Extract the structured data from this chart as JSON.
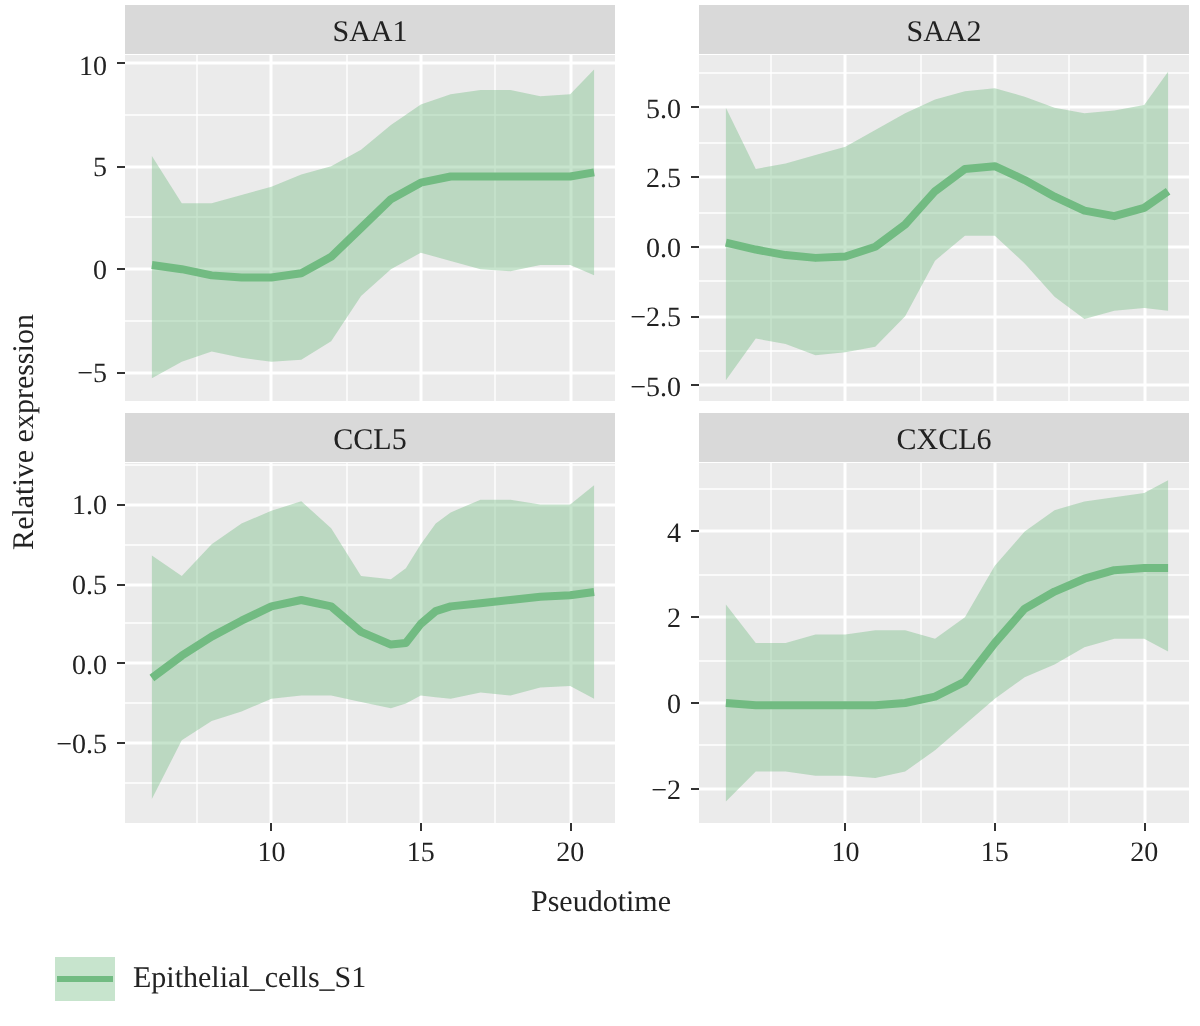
{
  "chart_data": [
    {
      "type": "line",
      "title": "SAA1",
      "ylabel": "Relative expression",
      "legend": "bottom",
      "grid": true,
      "tick_labels": "y",
      "xlim": [
        5.1,
        21.5
      ],
      "xticks": [
        10,
        15,
        20
      ],
      "ylim": [
        -6.4,
        10.4
      ],
      "yticks": [
        -5,
        0,
        5,
        10
      ],
      "series": [
        {
          "name": "Epithelial_cells_S1",
          "color": "#72bb82",
          "x": [
            6,
            7,
            8,
            9,
            10,
            11,
            12,
            13,
            14,
            15,
            16,
            17,
            18,
            19,
            20,
            20.8
          ],
          "values": [
            0.2,
            0,
            -0.3,
            -0.4,
            -0.4,
            -0.2,
            0.6,
            2,
            3.4,
            4.2,
            4.5,
            4.5,
            4.5,
            4.5,
            4.5,
            4.7
          ],
          "upper": [
            5.5,
            3.2,
            3.2,
            3.6,
            4,
            4.6,
            5,
            5.8,
            7,
            8,
            8.5,
            8.7,
            8.7,
            8.4,
            8.5,
            9.7
          ],
          "lower": [
            -5.3,
            -4.5,
            -4,
            -4.3,
            -4.5,
            -4.4,
            -3.5,
            -1.3,
            0,
            0.8,
            0.4,
            0,
            -0.1,
            0.2,
            0.2,
            -0.3
          ]
        }
      ]
    },
    {
      "type": "line",
      "title": "SAA2",
      "grid": true,
      "tick_labels": "y",
      "xlim": [
        5.1,
        21.5
      ],
      "xticks": [
        10,
        15,
        20
      ],
      "ylim": [
        -5.55,
        6.9
      ],
      "yticks": [
        {
          "value": -5,
          "label": "−5.0"
        },
        {
          "value": -2.5,
          "label": "−2.5"
        },
        {
          "value": 0,
          "label": "0.0"
        },
        {
          "value": 2.5,
          "label": "2.5"
        },
        {
          "value": 5,
          "label": "5.0"
        }
      ],
      "series": [
        {
          "color": "#72bb82",
          "x": [
            6,
            7,
            8,
            9,
            10,
            11,
            12,
            13,
            14,
            15,
            16,
            17,
            18,
            19,
            20,
            20.8
          ],
          "values": [
            0.15,
            -0.1,
            -0.3,
            -0.4,
            -0.35,
            0,
            0.8,
            2,
            2.8,
            2.9,
            2.4,
            1.8,
            1.3,
            1.1,
            1.4,
            2
          ],
          "upper": [
            5,
            2.8,
            3,
            3.3,
            3.6,
            4.2,
            4.8,
            5.3,
            5.6,
            5.7,
            5.4,
            5,
            4.8,
            4.9,
            5.1,
            6.3
          ],
          "lower": [
            -4.8,
            -3.3,
            -3.5,
            -3.9,
            -3.8,
            -3.6,
            -2.5,
            -0.5,
            0.4,
            0.4,
            -0.6,
            -1.8,
            -2.6,
            -2.3,
            -2.2,
            -2.3
          ]
        }
      ]
    },
    {
      "type": "line",
      "title": "CCL5",
      "xlabel": "Pseudotime",
      "grid": true,
      "xlim": [
        5.1,
        21.5
      ],
      "xticks": [
        10,
        15,
        20
      ],
      "ylim": [
        -1.0,
        1.26
      ],
      "yticks": [
        {
          "value": -0.5,
          "label": "−0.5"
        },
        {
          "value": 0,
          "label": "0.0"
        },
        {
          "value": 0.5,
          "label": "0.5"
        },
        {
          "value": 1,
          "label": "1.0"
        }
      ],
      "series": [
        {
          "color": "#72bb82",
          "x": [
            6,
            7,
            8,
            9,
            10,
            11,
            12,
            13,
            14,
            14.5,
            15,
            15.5,
            16,
            17,
            18,
            19,
            20,
            20.8
          ],
          "values": [
            -0.09,
            0.05,
            0.17,
            0.27,
            0.36,
            0.4,
            0.36,
            0.2,
            0.12,
            0.13,
            0.25,
            0.33,
            0.36,
            0.38,
            0.4,
            0.42,
            0.43,
            0.45
          ],
          "upper": [
            0.68,
            0.55,
            0.75,
            0.88,
            0.96,
            1.02,
            0.85,
            0.55,
            0.53,
            0.6,
            0.75,
            0.88,
            0.95,
            1.03,
            1.03,
            1.0,
            1.0,
            1.12
          ],
          "lower": [
            -0.85,
            -0.48,
            -0.36,
            -0.3,
            -0.22,
            -0.2,
            -0.2,
            -0.24,
            -0.28,
            -0.25,
            -0.2,
            -0.21,
            -0.22,
            -0.18,
            -0.2,
            -0.15,
            -0.14,
            -0.22
          ]
        }
      ]
    },
    {
      "type": "line",
      "title": "CXCL6",
      "grid": true,
      "xlim": [
        5.1,
        21.5
      ],
      "xticks": [
        10,
        15,
        20
      ],
      "ylim": [
        -2.8,
        5.6
      ],
      "yticks": [
        {
          "value": -2,
          "label": "−2"
        },
        0,
        2,
        4
      ],
      "series": [
        {
          "color": "#72bb82",
          "x": [
            6,
            7,
            8,
            9,
            10,
            11,
            12,
            13,
            14,
            15,
            16,
            17,
            18,
            19,
            20,
            20.8
          ],
          "values": [
            0,
            -0.05,
            -0.05,
            -0.05,
            -0.05,
            -0.05,
            0,
            0.15,
            0.5,
            1.4,
            2.2,
            2.6,
            2.9,
            3.1,
            3.15,
            3.15
          ],
          "upper": [
            2.3,
            1.4,
            1.4,
            1.6,
            1.6,
            1.7,
            1.7,
            1.5,
            2,
            3.2,
            4,
            4.5,
            4.7,
            4.8,
            4.9,
            5.2
          ],
          "lower": [
            -2.3,
            -1.6,
            -1.6,
            -1.7,
            -1.7,
            -1.75,
            -1.6,
            -1.1,
            -0.5,
            0.1,
            0.6,
            0.9,
            1.3,
            1.5,
            1.5,
            1.2
          ]
        }
      ]
    }
  ]
}
